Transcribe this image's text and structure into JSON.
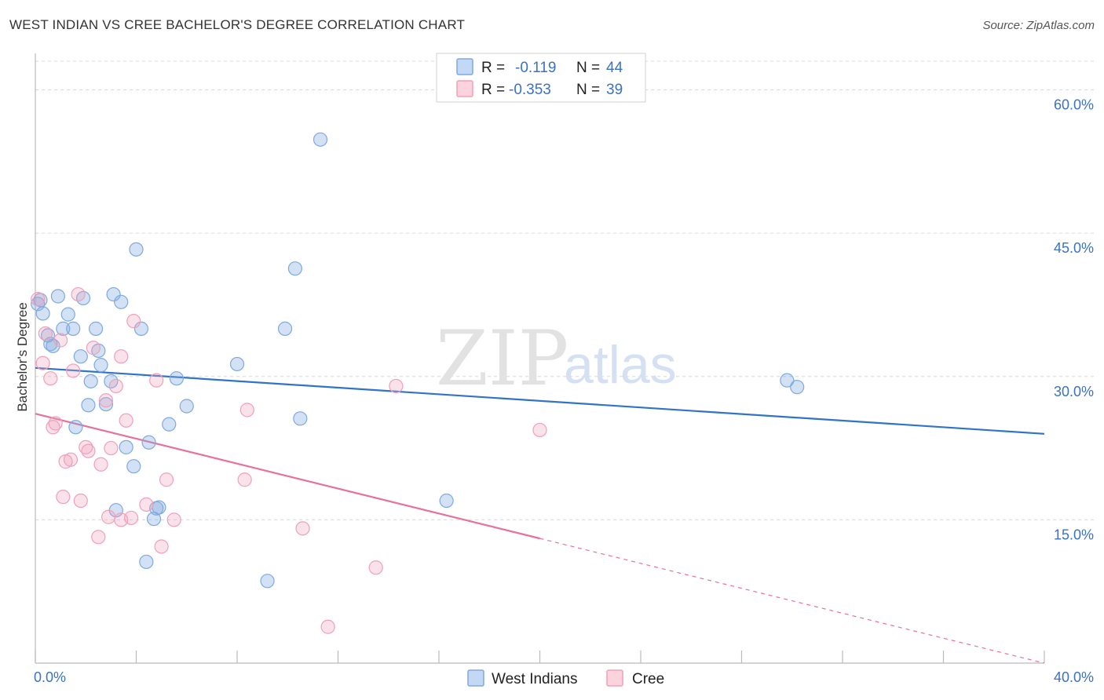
{
  "header": {
    "title": "WEST INDIAN VS CREE BACHELOR'S DEGREE CORRELATION CHART",
    "source": "Source: ZipAtlas.com"
  },
  "watermark": {
    "zip": "ZIP",
    "atlas": "atlas"
  },
  "legend": {
    "r_label": "R =",
    "n_label": "N =",
    "rows": [
      {
        "series": "West Indians",
        "r": "-0.119",
        "n": "44",
        "color": "#7fa9e0"
      },
      {
        "series": "Cree",
        "r": "-0.353",
        "n": "39",
        "color": "#f0a0b8"
      }
    ]
  },
  "chart_data": {
    "type": "scatter",
    "title": "WEST INDIAN VS CREE BACHELOR'S DEGREE CORRELATION CHART",
    "xlabel": "",
    "ylabel": "Bachelor's Degree",
    "xlim": [
      0,
      40
    ],
    "ylim": [
      0,
      63
    ],
    "x_tick_labels": [
      "0.0%",
      "40.0%"
    ],
    "y_ticks": [
      15,
      30,
      45,
      60
    ],
    "y_tick_labels": [
      "15.0%",
      "30.0%",
      "45.0%",
      "60.0%"
    ],
    "grid": true,
    "legend_position": "top-center",
    "series": [
      {
        "name": "West Indians",
        "color": "#7fa9e0",
        "line_color": "#2f74c9",
        "trend": {
          "x0": 0,
          "y0": 30.9,
          "x1": 40,
          "y1": 24.0,
          "dashed_from": null
        },
        "points": [
          [
            0.1,
            37.6
          ],
          [
            0.2,
            38.0
          ],
          [
            0.3,
            36.6
          ],
          [
            0.5,
            34.3
          ],
          [
            0.7,
            33.2
          ],
          [
            0.9,
            38.4
          ],
          [
            1.1,
            35.0
          ],
          [
            1.3,
            36.5
          ],
          [
            1.5,
            35.0
          ],
          [
            1.6,
            24.7
          ],
          [
            1.8,
            32.1
          ],
          [
            1.9,
            38.2
          ],
          [
            2.1,
            27.0
          ],
          [
            2.2,
            29.5
          ],
          [
            2.4,
            35.0
          ],
          [
            2.5,
            32.7
          ],
          [
            2.6,
            31.2
          ],
          [
            2.8,
            27.1
          ],
          [
            3.0,
            29.5
          ],
          [
            3.1,
            38.6
          ],
          [
            3.2,
            16.0
          ],
          [
            3.4,
            37.8
          ],
          [
            3.6,
            22.6
          ],
          [
            3.9,
            20.6
          ],
          [
            4.0,
            43.3
          ],
          [
            4.2,
            35.0
          ],
          [
            4.4,
            10.6
          ],
          [
            4.5,
            23.1
          ],
          [
            4.7,
            15.1
          ],
          [
            4.8,
            16.2
          ],
          [
            4.9,
            16.3
          ],
          [
            5.3,
            25.0
          ],
          [
            5.6,
            29.8
          ],
          [
            6.0,
            26.9
          ],
          [
            8.0,
            31.3
          ],
          [
            9.2,
            8.6
          ],
          [
            9.9,
            35.0
          ],
          [
            10.3,
            41.3
          ],
          [
            10.5,
            25.6
          ],
          [
            11.3,
            54.8
          ],
          [
            16.3,
            17.0
          ],
          [
            29.8,
            29.6
          ],
          [
            30.2,
            28.9
          ],
          [
            0.6,
            33.4
          ]
        ]
      },
      {
        "name": "Cree",
        "color": "#f0a0b8",
        "line_color": "#e8709a",
        "trend": {
          "x0": 0,
          "y0": 26.1,
          "x1": 40,
          "y1": 0.0,
          "dashed_from": 20
        },
        "points": [
          [
            0.1,
            38.1
          ],
          [
            0.3,
            31.4
          ],
          [
            0.4,
            34.5
          ],
          [
            0.6,
            29.8
          ],
          [
            0.7,
            24.7
          ],
          [
            0.8,
            25.1
          ],
          [
            1.0,
            33.8
          ],
          [
            1.1,
            17.4
          ],
          [
            1.2,
            21.1
          ],
          [
            1.4,
            21.3
          ],
          [
            1.5,
            30.6
          ],
          [
            1.7,
            38.6
          ],
          [
            1.8,
            17.0
          ],
          [
            2.0,
            22.6
          ],
          [
            2.1,
            22.2
          ],
          [
            2.3,
            33.0
          ],
          [
            2.5,
            13.2
          ],
          [
            2.6,
            20.8
          ],
          [
            2.8,
            27.5
          ],
          [
            2.9,
            15.3
          ],
          [
            3.0,
            22.5
          ],
          [
            3.2,
            29.0
          ],
          [
            3.4,
            32.1
          ],
          [
            3.4,
            15.0
          ],
          [
            3.6,
            25.4
          ],
          [
            3.8,
            15.2
          ],
          [
            3.9,
            35.8
          ],
          [
            4.4,
            16.6
          ],
          [
            4.8,
            29.6
          ],
          [
            5.0,
            12.2
          ],
          [
            5.2,
            19.2
          ],
          [
            5.5,
            15.0
          ],
          [
            8.3,
            19.2
          ],
          [
            8.4,
            26.5
          ],
          [
            10.6,
            14.1
          ],
          [
            11.6,
            3.8
          ],
          [
            13.5,
            10.0
          ],
          [
            14.3,
            29.0
          ],
          [
            20.0,
            24.4
          ]
        ]
      }
    ]
  },
  "bottom_legend": [
    {
      "label": "West Indians",
      "color": "#7fa9e0"
    },
    {
      "label": "Cree",
      "color": "#f0a0b8"
    }
  ]
}
